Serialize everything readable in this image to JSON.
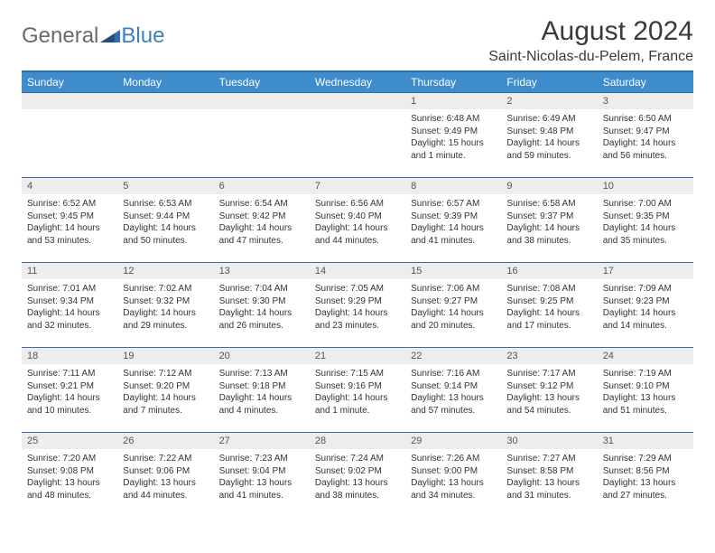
{
  "brand": {
    "part1": "General",
    "part2": "Blue"
  },
  "title": "August 2024",
  "location": "Saint-Nicolas-du-Pelem, France",
  "colors": {
    "header_bg": "#3f8ccc",
    "header_text": "#ffffff",
    "row_border": "#2f6faf",
    "daynum_bg": "#ededed",
    "text": "#333333",
    "brand_gray": "#6a6a6a",
    "brand_blue": "#3f7fbf",
    "page_bg": "#ffffff"
  },
  "weekdays": [
    "Sunday",
    "Monday",
    "Tuesday",
    "Wednesday",
    "Thursday",
    "Friday",
    "Saturday"
  ],
  "weeks": [
    [
      null,
      null,
      null,
      null,
      {
        "n": "1",
        "sr": "6:48 AM",
        "ss": "9:49 PM",
        "dl": "15 hours and 1 minute."
      },
      {
        "n": "2",
        "sr": "6:49 AM",
        "ss": "9:48 PM",
        "dl": "14 hours and 59 minutes."
      },
      {
        "n": "3",
        "sr": "6:50 AM",
        "ss": "9:47 PM",
        "dl": "14 hours and 56 minutes."
      }
    ],
    [
      {
        "n": "4",
        "sr": "6:52 AM",
        "ss": "9:45 PM",
        "dl": "14 hours and 53 minutes."
      },
      {
        "n": "5",
        "sr": "6:53 AM",
        "ss": "9:44 PM",
        "dl": "14 hours and 50 minutes."
      },
      {
        "n": "6",
        "sr": "6:54 AM",
        "ss": "9:42 PM",
        "dl": "14 hours and 47 minutes."
      },
      {
        "n": "7",
        "sr": "6:56 AM",
        "ss": "9:40 PM",
        "dl": "14 hours and 44 minutes."
      },
      {
        "n": "8",
        "sr": "6:57 AM",
        "ss": "9:39 PM",
        "dl": "14 hours and 41 minutes."
      },
      {
        "n": "9",
        "sr": "6:58 AM",
        "ss": "9:37 PM",
        "dl": "14 hours and 38 minutes."
      },
      {
        "n": "10",
        "sr": "7:00 AM",
        "ss": "9:35 PM",
        "dl": "14 hours and 35 minutes."
      }
    ],
    [
      {
        "n": "11",
        "sr": "7:01 AM",
        "ss": "9:34 PM",
        "dl": "14 hours and 32 minutes."
      },
      {
        "n": "12",
        "sr": "7:02 AM",
        "ss": "9:32 PM",
        "dl": "14 hours and 29 minutes."
      },
      {
        "n": "13",
        "sr": "7:04 AM",
        "ss": "9:30 PM",
        "dl": "14 hours and 26 minutes."
      },
      {
        "n": "14",
        "sr": "7:05 AM",
        "ss": "9:29 PM",
        "dl": "14 hours and 23 minutes."
      },
      {
        "n": "15",
        "sr": "7:06 AM",
        "ss": "9:27 PM",
        "dl": "14 hours and 20 minutes."
      },
      {
        "n": "16",
        "sr": "7:08 AM",
        "ss": "9:25 PM",
        "dl": "14 hours and 17 minutes."
      },
      {
        "n": "17",
        "sr": "7:09 AM",
        "ss": "9:23 PM",
        "dl": "14 hours and 14 minutes."
      }
    ],
    [
      {
        "n": "18",
        "sr": "7:11 AM",
        "ss": "9:21 PM",
        "dl": "14 hours and 10 minutes."
      },
      {
        "n": "19",
        "sr": "7:12 AM",
        "ss": "9:20 PM",
        "dl": "14 hours and 7 minutes."
      },
      {
        "n": "20",
        "sr": "7:13 AM",
        "ss": "9:18 PM",
        "dl": "14 hours and 4 minutes."
      },
      {
        "n": "21",
        "sr": "7:15 AM",
        "ss": "9:16 PM",
        "dl": "14 hours and 1 minute."
      },
      {
        "n": "22",
        "sr": "7:16 AM",
        "ss": "9:14 PM",
        "dl": "13 hours and 57 minutes."
      },
      {
        "n": "23",
        "sr": "7:17 AM",
        "ss": "9:12 PM",
        "dl": "13 hours and 54 minutes."
      },
      {
        "n": "24",
        "sr": "7:19 AM",
        "ss": "9:10 PM",
        "dl": "13 hours and 51 minutes."
      }
    ],
    [
      {
        "n": "25",
        "sr": "7:20 AM",
        "ss": "9:08 PM",
        "dl": "13 hours and 48 minutes."
      },
      {
        "n": "26",
        "sr": "7:22 AM",
        "ss": "9:06 PM",
        "dl": "13 hours and 44 minutes."
      },
      {
        "n": "27",
        "sr": "7:23 AM",
        "ss": "9:04 PM",
        "dl": "13 hours and 41 minutes."
      },
      {
        "n": "28",
        "sr": "7:24 AM",
        "ss": "9:02 PM",
        "dl": "13 hours and 38 minutes."
      },
      {
        "n": "29",
        "sr": "7:26 AM",
        "ss": "9:00 PM",
        "dl": "13 hours and 34 minutes."
      },
      {
        "n": "30",
        "sr": "7:27 AM",
        "ss": "8:58 PM",
        "dl": "13 hours and 31 minutes."
      },
      {
        "n": "31",
        "sr": "7:29 AM",
        "ss": "8:56 PM",
        "dl": "13 hours and 27 minutes."
      }
    ]
  ],
  "labels": {
    "sunrise": "Sunrise: ",
    "sunset": "Sunset: ",
    "daylight": "Daylight: "
  }
}
